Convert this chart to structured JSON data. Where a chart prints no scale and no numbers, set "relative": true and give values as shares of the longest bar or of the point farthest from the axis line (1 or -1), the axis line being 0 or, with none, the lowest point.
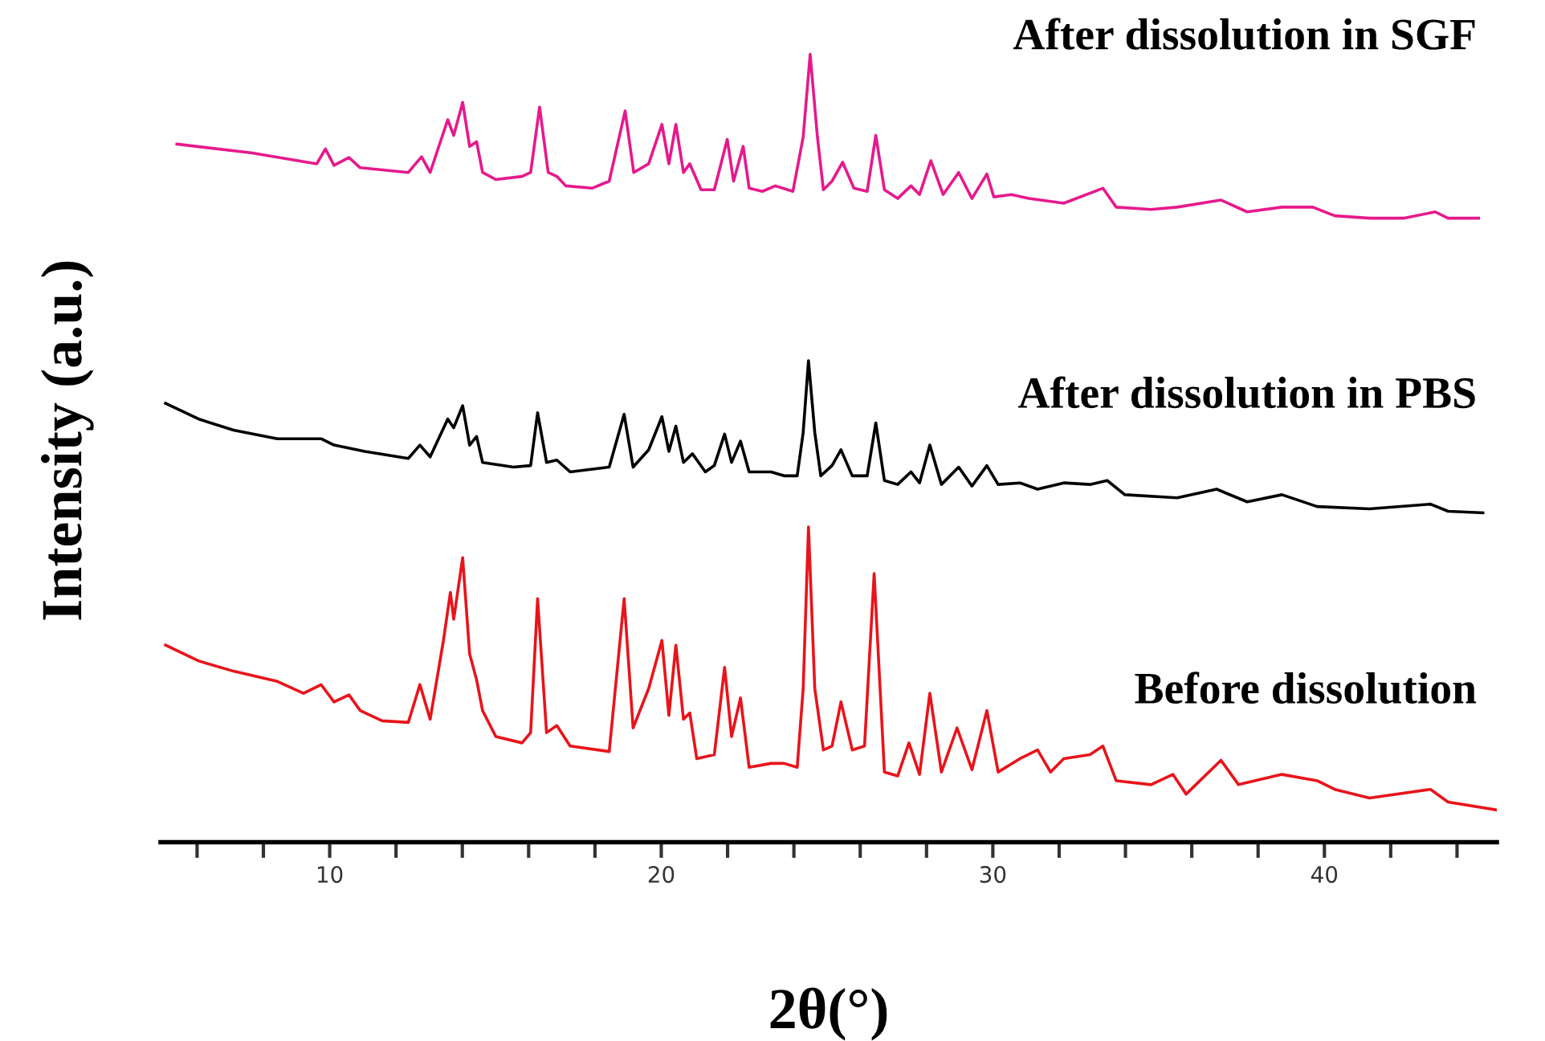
{
  "chart_data": {
    "type": "line",
    "relative": true,
    "xlabel": "2θ(°)",
    "ylabel": "Intensity (a.u.)",
    "xlim": [
      4.9,
      45.2
    ],
    "xticks": [
      {
        "value": 6,
        "label": null
      },
      {
        "value": 8,
        "label": null
      },
      10,
      {
        "value": 12,
        "label": null
      },
      {
        "value": 14,
        "label": null
      },
      {
        "value": 16,
        "label": null
      },
      {
        "value": 18,
        "label": null
      },
      20,
      {
        "value": 22,
        "label": null
      },
      {
        "value": 24,
        "label": null
      },
      {
        "value": 26,
        "label": null
      },
      {
        "value": 28,
        "label": null
      },
      30,
      {
        "value": 32,
        "label": null
      },
      {
        "value": 34,
        "label": null
      },
      {
        "value": 36,
        "label": null
      },
      {
        "value": 38,
        "label": null
      },
      40,
      {
        "value": 42,
        "label": null
      },
      {
        "value": 44,
        "label": null
      }
    ],
    "tick_labels": "x",
    "grid": false,
    "legend": false,
    "marker": "none",
    "line_style": "solid",
    "series": [
      {
        "name": "After dissolution in SGF",
        "color": "#e6198c",
        "x": [
          5.39,
          7.63,
          9.61,
          9.87,
          10.13,
          10.58,
          10.92,
          12.37,
          12.77,
          13.03,
          13.56,
          13.74,
          14.01,
          14.22,
          14.43,
          14.61,
          15.01,
          15.8,
          16.06,
          16.33,
          16.59,
          16.85,
          17.12,
          17.91,
          18.43,
          18.91,
          19.17,
          19.62,
          20.02,
          20.23,
          20.44,
          20.67,
          20.86,
          21.2,
          21.6,
          21.99,
          22.18,
          22.47,
          22.65,
          23.05,
          23.44,
          23.97,
          24.28,
          24.49,
          24.71,
          24.89,
          25.15,
          25.47,
          25.81,
          26.21,
          26.47,
          26.73,
          27.13,
          27.53,
          27.79,
          28.13,
          28.5,
          28.97,
          29.37,
          29.82,
          30.03,
          30.56,
          31.08,
          32.14,
          33.32,
          33.72,
          34.77,
          35.56,
          36.88,
          37.67,
          38.72,
          39.65,
          40.31,
          41.36,
          42.41,
          43.34,
          43.73,
          44.65
        ],
        "values": [
          0.886,
          0.875,
          0.861,
          0.88,
          0.859,
          0.869,
          0.856,
          0.85,
          0.87,
          0.85,
          0.917,
          0.897,
          0.939,
          0.883,
          0.889,
          0.85,
          0.841,
          0.845,
          0.85,
          0.933,
          0.85,
          0.845,
          0.833,
          0.83,
          0.839,
          0.928,
          0.85,
          0.861,
          0.911,
          0.861,
          0.911,
          0.85,
          0.861,
          0.828,
          0.828,
          0.892,
          0.839,
          0.883,
          0.83,
          0.826,
          0.833,
          0.826,
          0.895,
          1.0,
          0.895,
          0.828,
          0.839,
          0.863,
          0.83,
          0.826,
          0.897,
          0.828,
          0.817,
          0.833,
          0.822,
          0.865,
          0.822,
          0.85,
          0.817,
          0.848,
          0.819,
          0.822,
          0.817,
          0.811,
          0.83,
          0.806,
          0.803,
          0.806,
          0.815,
          0.8,
          0.806,
          0.806,
          0.795,
          0.792,
          0.792,
          0.8,
          0.792,
          0.792
        ]
      },
      {
        "name": "After dissolution in PBS",
        "color": "#000000",
        "x": [
          5.05,
          6.05,
          7.1,
          8.42,
          9.74,
          10.13,
          11.06,
          12.37,
          12.72,
          13.03,
          13.56,
          13.74,
          14.01,
          14.22,
          14.43,
          14.61,
          15.54,
          16.06,
          16.27,
          16.54,
          16.85,
          17.25,
          18.43,
          18.88,
          19.15,
          19.62,
          20.02,
          20.23,
          20.44,
          20.67,
          20.94,
          21.33,
          21.6,
          21.91,
          22.12,
          22.39,
          22.65,
          23.31,
          23.7,
          24.1,
          24.28,
          24.44,
          24.63,
          24.81,
          25.15,
          25.42,
          25.76,
          26.21,
          26.47,
          26.73,
          27.13,
          27.53,
          27.79,
          28.1,
          28.45,
          28.97,
          29.37,
          29.82,
          30.16,
          30.82,
          31.35,
          32.14,
          32.93,
          33.45,
          33.98,
          35.56,
          36.75,
          37.67,
          38.72,
          39.78,
          41.36,
          43.2,
          43.73,
          44.78
        ],
        "values": [
          0.557,
          0.537,
          0.523,
          0.512,
          0.512,
          0.504,
          0.496,
          0.487,
          0.504,
          0.489,
          0.537,
          0.526,
          0.554,
          0.504,
          0.515,
          0.482,
          0.476,
          0.478,
          0.545,
          0.482,
          0.485,
          0.47,
          0.476,
          0.543,
          0.476,
          0.498,
          0.54,
          0.496,
          0.528,
          0.482,
          0.493,
          0.47,
          0.478,
          0.518,
          0.482,
          0.509,
          0.47,
          0.47,
          0.465,
          0.465,
          0.52,
          0.611,
          0.52,
          0.465,
          0.478,
          0.498,
          0.465,
          0.465,
          0.532,
          0.459,
          0.454,
          0.47,
          0.456,
          0.504,
          0.454,
          0.476,
          0.452,
          0.478,
          0.454,
          0.456,
          0.448,
          0.456,
          0.454,
          0.459,
          0.441,
          0.437,
          0.448,
          0.432,
          0.441,
          0.426,
          0.423,
          0.429,
          0.42,
          0.418
        ]
      },
      {
        "name": "Before dissolution",
        "color": "#e8141b",
        "x": [
          5.05,
          6.05,
          7.1,
          8.42,
          9.21,
          9.74,
          10.13,
          10.58,
          10.92,
          11.58,
          12.37,
          12.72,
          13.03,
          13.43,
          13.64,
          13.74,
          14.01,
          14.22,
          14.43,
          14.61,
          15.01,
          15.8,
          16.06,
          16.27,
          16.54,
          16.85,
          17.25,
          18.43,
          18.88,
          19.15,
          19.62,
          20.02,
          20.23,
          20.44,
          20.67,
          20.86,
          21.07,
          21.6,
          21.91,
          22.12,
          22.39,
          22.65,
          23.31,
          23.7,
          24.1,
          24.28,
          24.44,
          24.63,
          24.89,
          25.15,
          25.42,
          25.76,
          26.13,
          26.42,
          26.73,
          27.13,
          27.47,
          27.79,
          28.1,
          28.45,
          28.92,
          29.37,
          29.82,
          30.16,
          30.82,
          31.35,
          31.74,
          32.14,
          32.93,
          33.32,
          33.72,
          34.77,
          35.43,
          35.83,
          36.88,
          37.41,
          38.72,
          39.78,
          40.31,
          41.36,
          43.2,
          43.73,
          45.18
        ],
        "values": [
          0.25,
          0.23,
          0.217,
          0.204,
          0.189,
          0.2,
          0.178,
          0.187,
          0.167,
          0.154,
          0.152,
          0.2,
          0.156,
          0.256,
          0.317,
          0.283,
          0.361,
          0.239,
          0.206,
          0.167,
          0.134,
          0.126,
          0.139,
          0.309,
          0.139,
          0.148,
          0.122,
          0.115,
          0.309,
          0.145,
          0.195,
          0.256,
          0.161,
          0.25,
          0.156,
          0.164,
          0.106,
          0.111,
          0.222,
          0.134,
          0.183,
          0.095,
          0.1,
          0.1,
          0.095,
          0.195,
          0.4,
          0.195,
          0.117,
          0.122,
          0.178,
          0.117,
          0.122,
          0.341,
          0.089,
          0.084,
          0.126,
          0.086,
          0.189,
          0.089,
          0.145,
          0.092,
          0.167,
          0.089,
          0.106,
          0.117,
          0.089,
          0.106,
          0.111,
          0.122,
          0.078,
          0.073,
          0.086,
          0.061,
          0.104,
          0.073,
          0.086,
          0.078,
          0.067,
          0.056,
          0.067,
          0.051,
          0.041
        ]
      }
    ]
  }
}
